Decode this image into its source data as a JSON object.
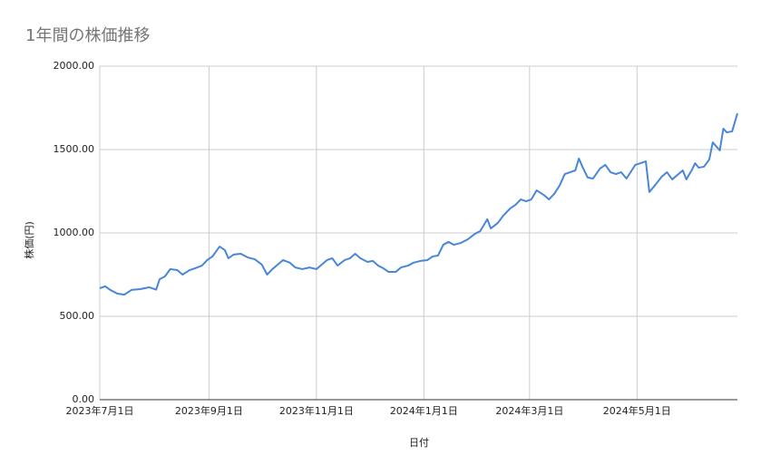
{
  "chart_data": {
    "type": "line",
    "title": "1年間の株価推移",
    "x_label": "日付",
    "y_label": "株価(円)",
    "x": [
      "2023-07-01",
      "2023-07-04",
      "2023-07-07",
      "2023-07-11",
      "2023-07-15",
      "2023-07-19",
      "2023-07-24",
      "2023-07-29",
      "2023-08-02",
      "2023-08-04",
      "2023-08-07",
      "2023-08-10",
      "2023-08-14",
      "2023-08-17",
      "2023-08-21",
      "2023-08-24",
      "2023-08-28",
      "2023-08-31",
      "2023-09-03",
      "2023-09-07",
      "2023-09-10",
      "2023-09-12",
      "2023-09-15",
      "2023-09-19",
      "2023-09-23",
      "2023-09-27",
      "2023-10-01",
      "2023-10-04",
      "2023-10-07",
      "2023-10-10",
      "2023-10-13",
      "2023-10-17",
      "2023-10-20",
      "2023-10-24",
      "2023-10-28",
      "2023-11-01",
      "2023-11-04",
      "2023-11-07",
      "2023-11-10",
      "2023-11-13",
      "2023-11-17",
      "2023-11-20",
      "2023-11-23",
      "2023-11-26",
      "2023-11-30",
      "2023-12-03",
      "2023-12-06",
      "2023-12-09",
      "2023-12-12",
      "2023-12-16",
      "2023-12-19",
      "2023-12-23",
      "2023-12-26",
      "2023-12-30",
      "2024-01-03",
      "2024-01-06",
      "2024-01-09",
      "2024-01-12",
      "2024-01-15",
      "2024-01-18",
      "2024-01-22",
      "2024-01-26",
      "2024-01-30",
      "2024-02-02",
      "2024-02-06",
      "2024-02-08",
      "2024-02-12",
      "2024-02-15",
      "2024-02-19",
      "2024-02-22",
      "2024-02-25",
      "2024-02-28",
      "2024-03-02",
      "2024-03-05",
      "2024-03-09",
      "2024-03-12",
      "2024-03-15",
      "2024-03-18",
      "2024-03-21",
      "2024-03-24",
      "2024-03-27",
      "2024-03-29",
      "2024-03-31",
      "2024-04-03",
      "2024-04-06",
      "2024-04-10",
      "2024-04-13",
      "2024-04-16",
      "2024-04-19",
      "2024-04-22",
      "2024-04-25",
      "2024-04-28",
      "2024-04-30",
      "2024-05-03",
      "2024-05-06",
      "2024-05-08",
      "2024-05-11",
      "2024-05-15",
      "2024-05-18",
      "2024-05-21",
      "2024-05-24",
      "2024-05-27",
      "2024-05-29",
      "2024-06-01",
      "2024-06-03",
      "2024-06-05",
      "2024-06-08",
      "2024-06-11",
      "2024-06-13",
      "2024-06-17",
      "2024-06-19",
      "2024-06-21",
      "2024-06-24",
      "2024-06-27"
    ],
    "series": [
      {
        "color": "#4a86d8",
        "values": [
          668,
          680,
          658,
          636,
          630,
          658,
          663,
          674,
          660,
          723,
          739,
          783,
          777,
          750,
          777,
          788,
          804,
          837,
          859,
          918,
          897,
          848,
          870,
          875,
          853,
          842,
          810,
          750,
          783,
          810,
          837,
          821,
          793,
          783,
          793,
          783,
          810,
          837,
          848,
          804,
          837,
          848,
          875,
          848,
          826,
          832,
          804,
          788,
          766,
          766,
          793,
          804,
          821,
          832,
          837,
          859,
          864,
          929,
          946,
          929,
          940,
          962,
          995,
          1011,
          1082,
          1027,
          1060,
          1103,
          1147,
          1168,
          1201,
          1190,
          1201,
          1255,
          1228,
          1201,
          1234,
          1283,
          1353,
          1364,
          1375,
          1446,
          1397,
          1332,
          1326,
          1386,
          1408,
          1364,
          1353,
          1364,
          1326,
          1375,
          1408,
          1418,
          1429,
          1245,
          1283,
          1337,
          1364,
          1321,
          1348,
          1375,
          1321,
          1375,
          1418,
          1391,
          1397,
          1440,
          1543,
          1495,
          1625,
          1603,
          1609,
          1717
        ]
      }
    ],
    "xlim": [
      "2023-07-01",
      "2024-06-27"
    ],
    "xticks": [
      {
        "value": "2023-07-01",
        "label": "2023年7月1日"
      },
      {
        "value": "2023-09-01",
        "label": "2023年9月1日"
      },
      {
        "value": "2023-11-01",
        "label": "2023年11月1日"
      },
      {
        "value": "2024-01-01",
        "label": "2024年1月1日"
      },
      {
        "value": "2024-03-01",
        "label": "2024年3月1日"
      },
      {
        "value": "2024-05-01",
        "label": "2024年5月1日"
      }
    ],
    "ylim": [
      0,
      2000
    ],
    "yticks": [
      {
        "value": 0,
        "label": "0.00"
      },
      {
        "value": 500,
        "label": "500.00"
      },
      {
        "value": 1000,
        "label": "1000.00"
      },
      {
        "value": 1500,
        "label": "1500.00"
      },
      {
        "value": 2000,
        "label": "2000.00"
      }
    ],
    "grid": true
  }
}
